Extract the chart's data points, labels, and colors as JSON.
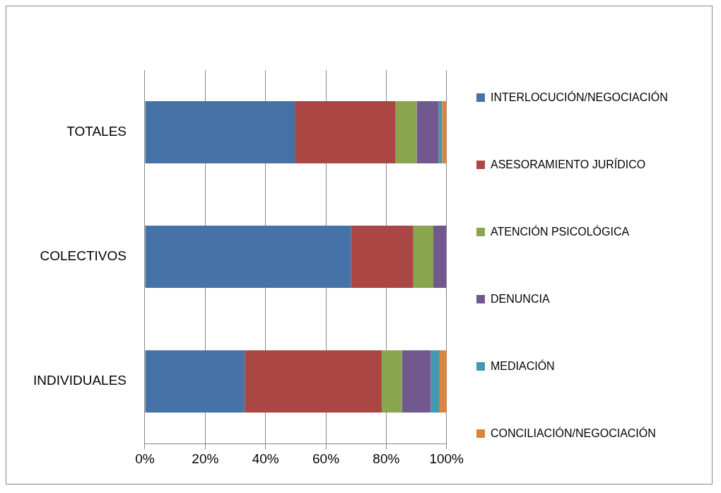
{
  "chart_data": {
    "type": "bar",
    "orientation": "horizontal",
    "stacked": true,
    "categories": [
      "TOTALES",
      "COLECTIVOS",
      "INDIVIDUALES"
    ],
    "series": [
      {
        "name": "INTERLOCUCIÓN/NEGOCIACIÓN",
        "color": "#4572a7",
        "values": [
          49.7,
          68.3,
          33.1
        ]
      },
      {
        "name": "ASESORAMIENTO JURÍDICO",
        "color": "#aa4643",
        "values": [
          33.4,
          20.7,
          45.4
        ]
      },
      {
        "name": "ATENCIÓN PSICOLÓGICA",
        "color": "#89a54e",
        "values": [
          7,
          6.6,
          6.7
        ]
      },
      {
        "name": "DENUNCIA",
        "color": "#71588f",
        "values": [
          7.3,
          4.4,
          9.6
        ]
      },
      {
        "name": "MEDIACIÓN",
        "color": "#4198af",
        "values": [
          1.1,
          0,
          2.9
        ]
      },
      {
        "name": "CONCILIACIÓN/NEGOCIACIÓN",
        "color": "#db843d",
        "values": [
          1.5,
          0,
          2.3
        ]
      }
    ],
    "xlim": [
      0,
      100
    ],
    "xticks": [
      {
        "value": 0,
        "label": "0%"
      },
      {
        "value": 20,
        "label": "20%"
      },
      {
        "value": 40,
        "label": "40%"
      },
      {
        "value": 60,
        "label": "60%"
      },
      {
        "value": 80,
        "label": "80%"
      },
      {
        "value": 100,
        "label": "100%"
      }
    ],
    "grid": "x",
    "legend": "right"
  }
}
